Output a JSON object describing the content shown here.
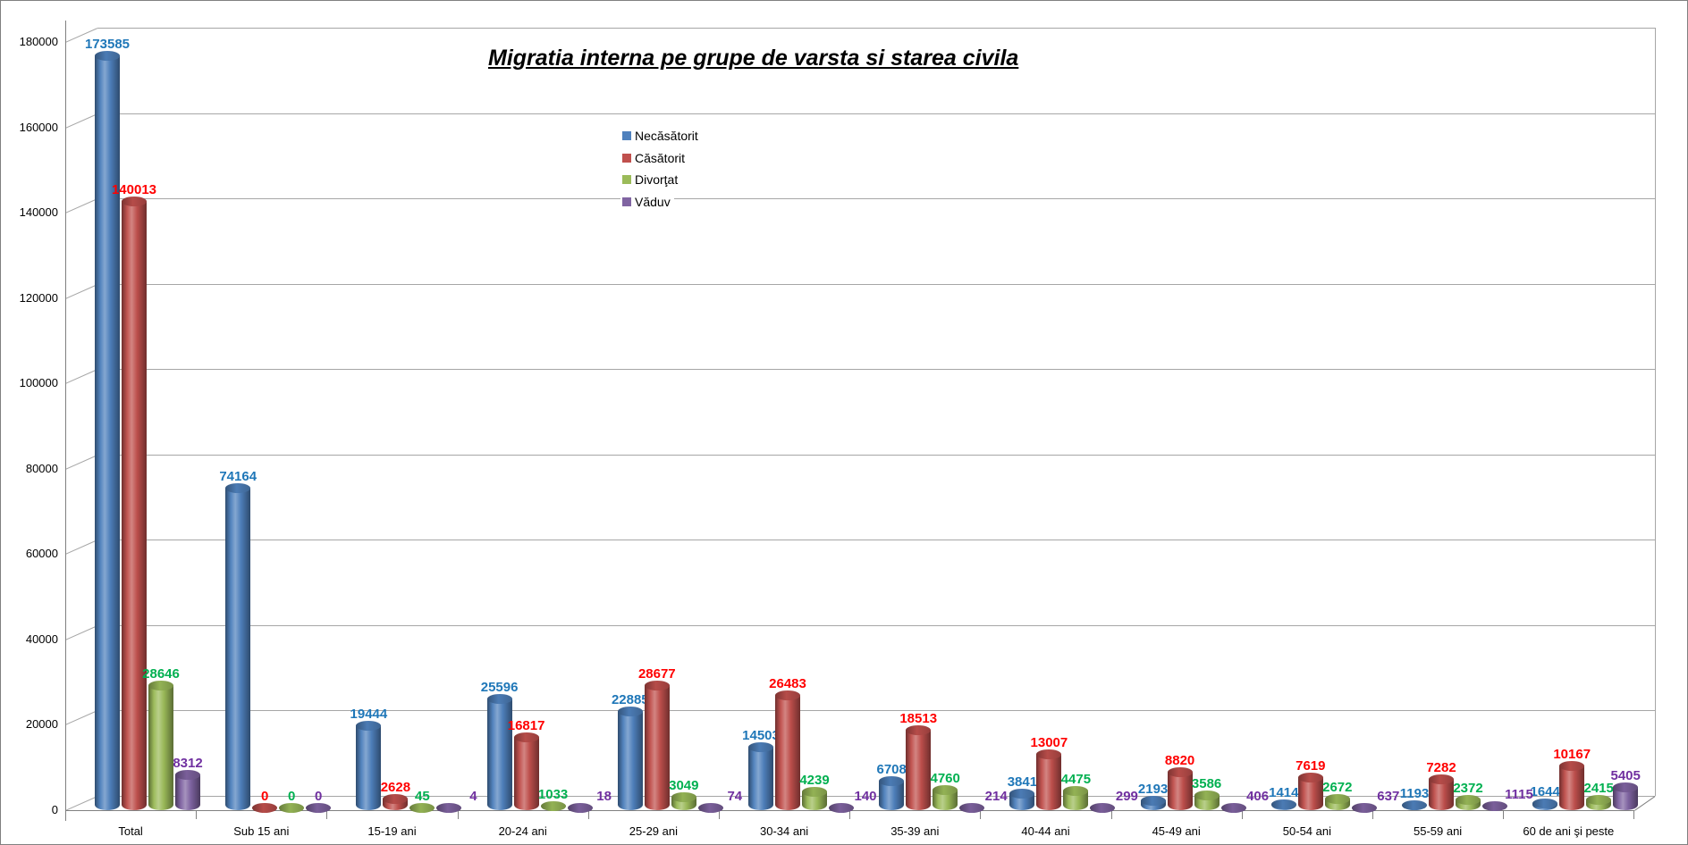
{
  "window": {
    "background": "#FFFFFF",
    "border_color": "#808080"
  },
  "chart_data": {
    "type": "bar",
    "subtype": "3d-cylinder-column",
    "title": "Migratia interna pe grupe de varsta si starea civila",
    "categories": [
      "Total",
      "Sub 15 ani",
      "15-19 ani",
      "20-24 ani",
      "25-29 ani",
      "30-34 ani",
      "35-39 ani",
      "40-44 ani",
      "45-49 ani",
      "50-54 ani",
      "55-59 ani",
      "60 de ani şi peste"
    ],
    "series": [
      {
        "name": "Necăsătorit",
        "color": "#4F81BD",
        "label_color": "#1F77B8",
        "values": [
          173585,
          74164,
          19444,
          25596,
          22885,
          14503,
          6708,
          3841,
          2193,
          1414,
          1193,
          1644
        ]
      },
      {
        "name": "Căsătorit",
        "color": "#C0504D",
        "label_color": "#FF0000",
        "values": [
          140013,
          0,
          2628,
          16817,
          28677,
          26483,
          18513,
          13007,
          8820,
          7619,
          7282,
          10167
        ]
      },
      {
        "name": "Divorţat",
        "color": "#9BBB59",
        "label_color": "#00B050",
        "values": [
          28646,
          0,
          45,
          1033,
          3049,
          4239,
          4760,
          4475,
          3586,
          2672,
          2372,
          2415
        ]
      },
      {
        "name": "Văduv",
        "color": "#8064A2",
        "label_color": "#7030A0",
        "values": [
          8312,
          0,
          4,
          18,
          74,
          140,
          214,
          299,
          406,
          637,
          1115,
          5405
        ]
      }
    ],
    "ylim": [
      0,
      180000
    ],
    "ytick_step": 20000,
    "ytick_labels": [
      "0",
      "20000",
      "40000",
      "60000",
      "80000",
      "100000",
      "120000",
      "140000",
      "160000",
      "180000"
    ],
    "grid": true,
    "data_labels": true,
    "legend_position": "top-center-vertical",
    "gridline_color": "#A6A6A6",
    "axis_color": "#808080",
    "tick_label_color": "#000000"
  }
}
